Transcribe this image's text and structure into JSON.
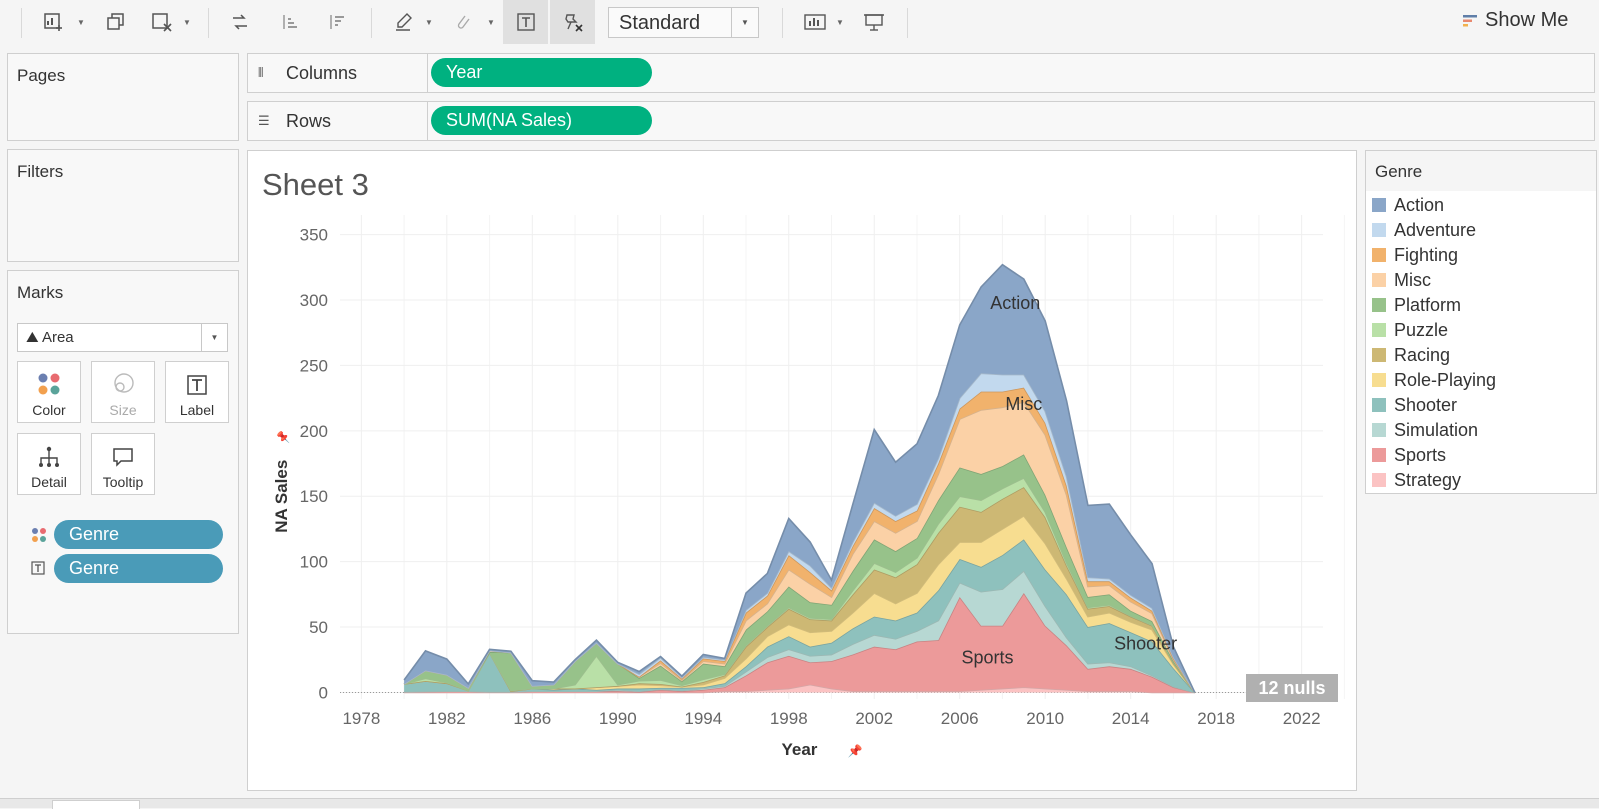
{
  "toolbar": {
    "mark_type_select": "Standard",
    "show_me_label": "Show Me",
    "icons": [
      "new-worksheet-icon",
      "duplicate-icon",
      "clear-sheet-icon",
      "swap-icon",
      "sort-asc-icon",
      "sort-desc-icon",
      "highlight-icon",
      "group-icon",
      "label-icon",
      "fix-axes-icon",
      "fit-icon",
      "presentation-icon"
    ]
  },
  "shelves": {
    "columns_label": "Columns",
    "columns_pill": "Year",
    "rows_label": "Rows",
    "rows_pill": "SUM(NA Sales)"
  },
  "panels": {
    "pages_title": "Pages",
    "filters_title": "Filters",
    "marks_title": "Marks",
    "mark_type": "Area",
    "cards": [
      {
        "label": "Color",
        "icon": "color-icon"
      },
      {
        "label": "Size",
        "icon": "size-icon"
      },
      {
        "label": "Label",
        "icon": "label-icon"
      },
      {
        "label": "Detail",
        "icon": "detail-icon"
      },
      {
        "label": "Tooltip",
        "icon": "tooltip-icon"
      }
    ],
    "mark_pills": [
      {
        "label": "Genre",
        "icon": "color-icon"
      },
      {
        "label": "Genre",
        "icon": "label-icon"
      }
    ]
  },
  "sheet": {
    "title": "Sheet 3",
    "nulls_badge": "12 nulls"
  },
  "legend": {
    "title": "Genre",
    "items": [
      {
        "name": "Action",
        "color": "#8aa6c8"
      },
      {
        "name": "Adventure",
        "color": "#c2d9ee"
      },
      {
        "name": "Fighting",
        "color": "#f1b26c"
      },
      {
        "name": "Misc",
        "color": "#fbd1a6"
      },
      {
        "name": "Platform",
        "color": "#97c28a"
      },
      {
        "name": "Puzzle",
        "color": "#b9e0a7"
      },
      {
        "name": "Racing",
        "color": "#cdb874"
      },
      {
        "name": "Role-Playing",
        "color": "#f7dd90"
      },
      {
        "name": "Shooter",
        "color": "#8ec1bd"
      },
      {
        "name": "Simulation",
        "color": "#b7d8d3"
      },
      {
        "name": "Sports",
        "color": "#ec9a9a"
      },
      {
        "name": "Strategy",
        "color": "#fbc3c3"
      }
    ]
  },
  "chart_data": {
    "type": "area",
    "stacked": true,
    "xlabel": "Year",
    "ylabel": "NA Sales",
    "xlim": [
      1977,
      2023
    ],
    "ylim": [
      -5,
      365
    ],
    "x_ticks": [
      1978,
      1982,
      1986,
      1990,
      1994,
      1998,
      2002,
      2006,
      2010,
      2014,
      2018,
      2022
    ],
    "y_ticks": [
      0,
      50,
      100,
      150,
      200,
      250,
      300,
      350
    ],
    "grid": true,
    "legend_position": "right",
    "years": [
      1980,
      1981,
      1982,
      1983,
      1984,
      1985,
      1986,
      1987,
      1988,
      1989,
      1990,
      1991,
      1992,
      1993,
      1994,
      1995,
      1996,
      1997,
      1998,
      1999,
      2000,
      2001,
      2002,
      2003,
      2004,
      2005,
      2006,
      2007,
      2008,
      2009,
      2010,
      2011,
      2012,
      2013,
      2014,
      2015,
      2016,
      2017
    ],
    "series": [
      {
        "name": "Strategy",
        "values": [
          0,
          0,
          0,
          0,
          0,
          0,
          0,
          0,
          0,
          0,
          0,
          0,
          0,
          0,
          0,
          1,
          1,
          2,
          3,
          6,
          3,
          1,
          1,
          1,
          1,
          1,
          1,
          2,
          3,
          4,
          3,
          2,
          1,
          1,
          1,
          0,
          0,
          0
        ]
      },
      {
        "name": "Sports",
        "values": [
          0.5,
          0.8,
          1,
          1,
          0.5,
          0.5,
          1,
          1,
          1,
          1,
          1,
          0.5,
          2,
          1,
          2,
          3,
          12,
          21,
          25,
          17,
          21,
          28,
          34,
          32,
          38,
          39,
          72,
          49,
          48,
          72,
          48,
          34,
          17,
          19,
          17,
          12,
          4,
          0
        ]
      },
      {
        "name": "Simulation",
        "values": [
          0,
          0,
          0,
          0,
          0,
          0,
          0,
          0,
          0,
          0,
          1,
          0.5,
          0.5,
          0.5,
          1,
          1,
          3,
          4,
          5,
          5,
          5,
          8,
          9,
          8,
          8,
          15,
          11,
          26,
          28,
          17,
          15,
          6,
          4,
          3,
          2,
          1,
          0.5,
          0
        ]
      },
      {
        "name": "Shooter",
        "values": [
          6,
          8,
          6,
          0.5,
          30,
          0.5,
          2,
          1,
          2,
          1,
          1,
          2,
          1,
          2,
          1,
          2,
          4,
          8,
          10,
          7,
          9,
          12,
          14,
          14,
          14,
          23,
          18,
          19,
          26,
          24,
          28,
          33,
          28,
          30,
          26,
          26,
          14,
          0
        ]
      },
      {
        "name": "Role-Playing",
        "values": [
          0,
          0,
          0,
          0,
          0,
          0,
          0,
          1,
          0,
          2,
          2,
          3,
          2,
          1,
          2,
          4,
          6,
          8,
          9,
          11,
          9,
          12,
          18,
          13,
          15,
          20,
          13,
          19,
          20,
          18,
          20,
          12,
          8,
          8,
          8,
          9,
          3,
          0
        ]
      },
      {
        "name": "Racing",
        "values": [
          0,
          0,
          0,
          0,
          0,
          0,
          0,
          0,
          0,
          0,
          0,
          1,
          1,
          0,
          2,
          2,
          9,
          7,
          12,
          10,
          8,
          14,
          18,
          20,
          22,
          24,
          27,
          23,
          23,
          22,
          20,
          10,
          6,
          5,
          4,
          3,
          1,
          0
        ]
      },
      {
        "name": "Puzzle",
        "values": [
          0,
          2,
          0.5,
          0,
          0,
          0.5,
          0,
          0,
          3,
          24,
          1,
          2,
          3,
          1,
          2,
          1,
          1,
          1,
          1,
          1,
          1,
          3,
          5,
          4,
          5,
          7,
          8,
          9,
          8,
          7,
          4,
          2,
          1,
          1,
          0.5,
          0.5,
          0.5,
          0
        ]
      },
      {
        "name": "Platform",
        "values": [
          0,
          6,
          6,
          2,
          0.5,
          29,
          2,
          3,
          18,
          10,
          16,
          2,
          11,
          3,
          12,
          6,
          12,
          11,
          16,
          12,
          11,
          15,
          18,
          16,
          15,
          18,
          22,
          20,
          17,
          18,
          13,
          12,
          8,
          8,
          4,
          3,
          1,
          0
        ]
      },
      {
        "name": "Misc",
        "values": [
          0,
          0,
          0,
          0,
          1,
          0,
          0,
          0,
          0,
          0,
          0,
          1,
          2,
          1,
          2,
          2,
          7,
          6,
          13,
          14,
          6,
          13,
          14,
          14,
          13,
          20,
          37,
          49,
          45,
          40,
          46,
          40,
          8,
          7,
          7,
          6,
          1,
          0
        ]
      },
      {
        "name": "Fighting",
        "values": [
          0,
          0,
          0,
          0,
          0,
          0,
          0,
          0,
          0,
          0,
          0,
          0,
          2,
          1,
          2,
          2,
          6,
          6,
          11,
          9,
          5,
          6,
          10,
          9,
          8,
          8,
          8,
          14,
          12,
          11,
          9,
          7,
          4,
          3,
          3,
          2,
          1,
          0
        ]
      },
      {
        "name": "Adventure",
        "values": [
          0,
          0,
          0,
          0,
          0,
          0,
          0,
          0,
          0,
          0,
          0,
          2,
          2,
          1,
          1,
          1,
          2,
          2,
          3,
          5,
          2,
          3,
          4,
          4,
          5,
          4,
          8,
          14,
          13,
          10,
          9,
          7,
          3,
          2,
          2,
          2,
          1,
          0
        ]
      },
      {
        "name": "Action",
        "values": [
          3,
          15,
          12,
          3,
          1,
          1,
          4,
          2,
          1,
          2,
          1,
          2,
          1,
          1,
          2,
          1,
          13,
          15,
          25,
          18,
          6,
          29,
          56,
          41,
          46,
          48,
          56,
          66,
          84,
          73,
          69,
          58,
          55,
          57,
          46,
          34,
          8,
          0
        ]
      }
    ],
    "annotations": [
      {
        "text": "Action",
        "x": 2008.6,
        "y": 293
      },
      {
        "text": "Misc",
        "x": 2009,
        "y": 216
      },
      {
        "text": "Sports",
        "x": 2007.3,
        "y": 22
      },
      {
        "text": "Shooter",
        "x": 2014.7,
        "y": 33
      }
    ]
  }
}
